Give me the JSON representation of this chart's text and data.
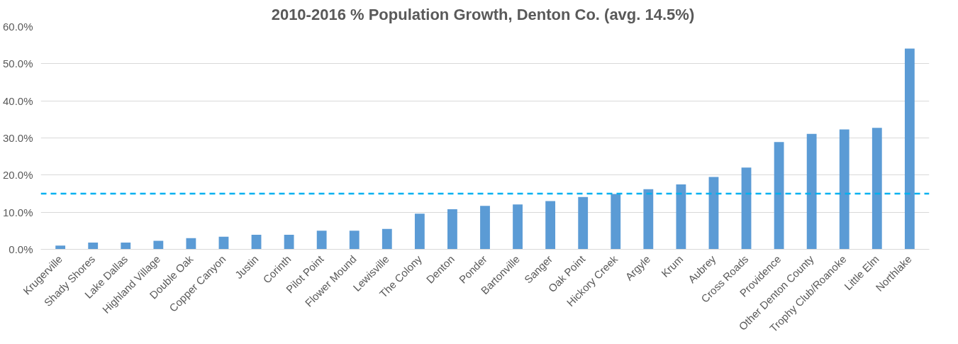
{
  "chart_data": {
    "type": "bar",
    "title": "2010-2016 %  Population Growth, Denton Co. (avg. 14.5%)",
    "categories": [
      "Krugerville",
      "Shady Shores",
      "Lake Dallas",
      "Highland Village",
      "Double Oak",
      "Copper Canyon",
      "Justin",
      "Corinth",
      "Pilot Point",
      "Flower Mound",
      "Lewisville",
      "The Colony",
      "Denton",
      "Ponder",
      "Bartonville",
      "Sanger",
      "Oak Point",
      "Hickory Creek",
      "Argyle",
      "Krum",
      "Aubrey",
      "Cross Roads",
      "Providence",
      "Other Denton County",
      "Trophy Club/Roanoke",
      "Little Elm",
      "Northlake"
    ],
    "values": [
      1.0,
      1.8,
      1.8,
      2.3,
      3.0,
      3.4,
      3.9,
      3.9,
      5.0,
      5.0,
      5.5,
      9.6,
      10.8,
      11.7,
      12.1,
      13.0,
      14.1,
      14.9,
      16.2,
      17.5,
      19.5,
      22.0,
      28.9,
      31.1,
      32.3,
      32.7,
      54.1
    ],
    "color": "#5b9bd5",
    "ylim": [
      0,
      60
    ],
    "yticks": [
      {
        "value": 0,
        "label": "0.0%"
      },
      {
        "value": 10,
        "label": "10.0%"
      },
      {
        "value": 20,
        "label": "20.0%"
      },
      {
        "value": 30,
        "label": "30.0%"
      },
      {
        "value": 40,
        "label": "40.0%"
      },
      {
        "value": 50,
        "label": "50.0%"
      },
      {
        "value": 60,
        "label": "60.0%"
      }
    ],
    "grid": "y",
    "ref_lines": [
      {
        "axis": "y",
        "value": 15,
        "color": "#00b0f0",
        "line_style": "dashed"
      }
    ]
  }
}
